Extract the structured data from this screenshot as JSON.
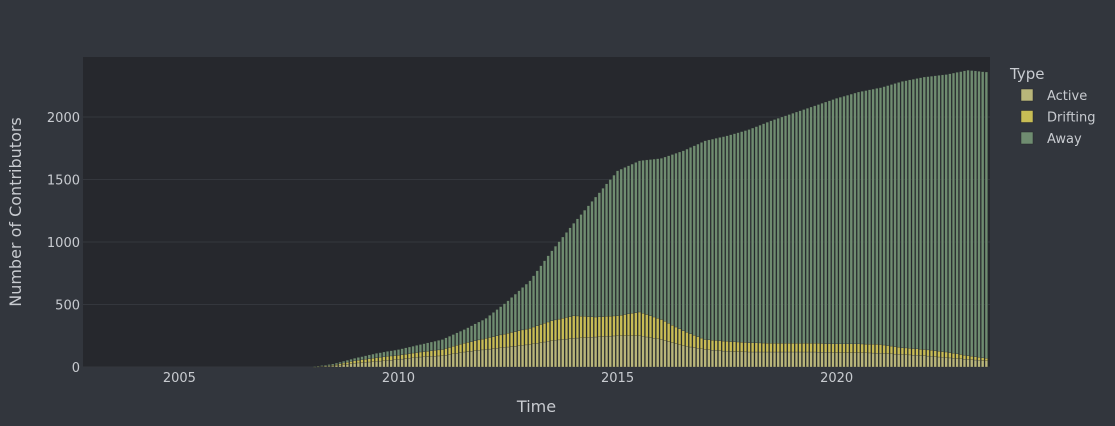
{
  "chart_data": {
    "type": "bar",
    "stacked": true,
    "xlabel": "Time",
    "ylabel": "Number of Contributors",
    "xlim": [
      2002.8,
      2023.5
    ],
    "ylim": [
      0,
      2480
    ],
    "x_ticks": [
      2005,
      2010,
      2015,
      2020
    ],
    "y_ticks": [
      0,
      500,
      1000,
      1500,
      2000
    ],
    "grid": true,
    "legend": {
      "title": "Type",
      "placement": "top-right (outside plot)"
    },
    "x": [
      2008.0,
      2008.5,
      2009.0,
      2009.5,
      2010.0,
      2010.5,
      2011.0,
      2011.5,
      2012.0,
      2012.5,
      2013.0,
      2013.5,
      2014.0,
      2014.5,
      2015.0,
      2015.5,
      2016.0,
      2016.5,
      2017.0,
      2017.5,
      2018.0,
      2018.5,
      2019.0,
      2019.5,
      2020.0,
      2020.5,
      2021.0,
      2021.5,
      2022.0,
      2022.5,
      2023.0,
      2023.4
    ],
    "series": [
      {
        "name": "Active",
        "color": "#b9b67a",
        "values": [
          0,
          8,
          30,
          45,
          60,
          80,
          90,
          120,
          140,
          160,
          180,
          210,
          230,
          240,
          250,
          250,
          220,
          170,
          140,
          125,
          120,
          120,
          120,
          120,
          115,
          115,
          110,
          100,
          90,
          75,
          60,
          50
        ]
      },
      {
        "name": "Drifting",
        "color": "#c8bd55",
        "values": [
          0,
          6,
          20,
          30,
          35,
          40,
          50,
          70,
          90,
          110,
          130,
          160,
          180,
          160,
          160,
          190,
          160,
          120,
          80,
          80,
          75,
          70,
          70,
          70,
          70,
          70,
          70,
          55,
          50,
          45,
          30,
          20
        ]
      },
      {
        "name": "Away",
        "color": "#6f8c70",
        "values": [
          0,
          10,
          20,
          35,
          45,
          60,
          80,
          110,
          160,
          260,
          380,
          560,
          740,
          960,
          1160,
          1210,
          1290,
          1440,
          1590,
          1645,
          1705,
          1780,
          1840,
          1900,
          1965,
          2015,
          2055,
          2130,
          2180,
          2220,
          2285,
          2290
        ]
      }
    ]
  }
}
